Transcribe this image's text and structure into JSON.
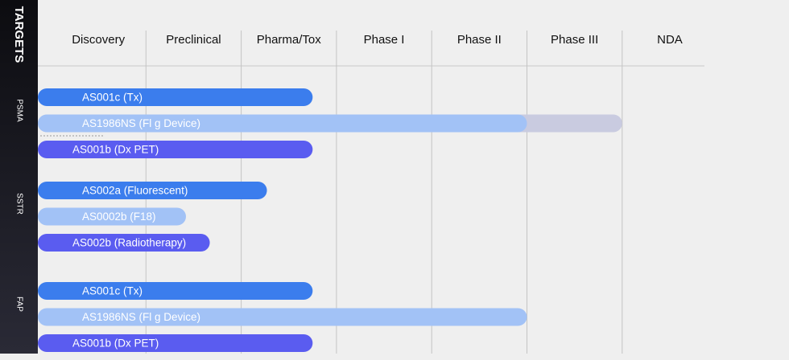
{
  "sidebar_title": "TARGETS",
  "phases": [
    "Discovery",
    "Preclinical",
    "Pharma/Tox",
    "Phase I",
    "Phase II",
    "Phase III",
    "NDA"
  ],
  "groups": [
    {
      "target": "PSMA",
      "programs": [
        {
          "name": "AS001c (Tx)",
          "end": 2.75,
          "color": "#3b7ded"
        },
        {
          "name": "AS1986NS (Fl g Device)",
          "end": 5,
          "color": "#a2c2f6",
          "extension_end": 6,
          "extension_color": "#c9cbe0"
        },
        {
          "name": "AS001b (Dx PET)",
          "end": 2.75,
          "color": "#5a5cf0"
        }
      ]
    },
    {
      "target": "SSTR",
      "programs": [
        {
          "name": "AS002a (Fluorescent)",
          "end": 2.27,
          "color": "#3b7ded"
        },
        {
          "name": "AS0002b (F18)",
          "end": 1.42,
          "color": "#a2c2f6"
        },
        {
          "name": "AS002b (Radiotherapy)",
          "end": 1.67,
          "color": "#5a5cf0"
        }
      ]
    },
    {
      "target": "FAP",
      "programs": [
        {
          "name": "AS001c (Tx)",
          "end": 2.75,
          "color": "#3b7ded"
        },
        {
          "name": "AS1986NS (Fl g Device)",
          "end": 5,
          "color": "#a2c2f6"
        },
        {
          "name": "AS001b (Dx PET)",
          "end": 2.75,
          "color": "#5a5cf0"
        }
      ]
    }
  ]
}
